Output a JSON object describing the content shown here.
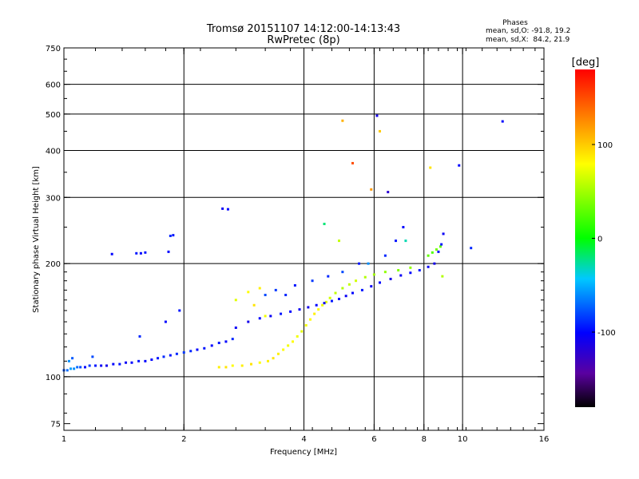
{
  "chart_data": {
    "type": "scatter",
    "title": "Tromsø 20151107 14:12:00-14:13:43",
    "subtitle": "RwPretec (8p)",
    "xlabel": "Frequency [MHz]",
    "ylabel": "Stationary phase Virtual Height [km]",
    "x_scale": "log2",
    "y_scale": "log",
    "xlim": [
      1,
      16
    ],
    "ylim": [
      72,
      750
    ],
    "x_ticks": [
      "1",
      "2",
      "4",
      "6",
      "8",
      "10",
      "16"
    ],
    "y_ticks": [
      "75",
      "100",
      "200",
      "300",
      "400",
      "500",
      "600",
      "750"
    ],
    "grid_x_values": [
      2,
      4,
      6,
      8,
      10
    ],
    "grid_y_values": [
      100,
      200,
      300,
      400,
      500,
      600
    ],
    "stats": {
      "header": "Phases",
      "line1": "mean, sd,O: -91.8, 19.2",
      "line2": "mean, sd,X:  84.2, 21.9"
    },
    "colorbar": {
      "label": "[deg]",
      "ticks": [
        "100",
        "0",
        "-100"
      ],
      "tick_values": [
        100,
        0,
        -100
      ],
      "range": [
        -180,
        180
      ]
    },
    "series": [
      {
        "values": [
          [
            1.0,
            104,
            -78
          ],
          [
            1.02,
            104,
            -70
          ],
          [
            1.04,
            105,
            -55
          ],
          [
            1.06,
            105,
            -60
          ],
          [
            1.08,
            106,
            -70
          ],
          [
            1.1,
            106,
            -80
          ],
          [
            1.13,
            106,
            -100
          ],
          [
            1.16,
            107,
            -85
          ],
          [
            1.2,
            107,
            -95
          ],
          [
            1.24,
            107,
            -105
          ],
          [
            1.28,
            107,
            -110
          ],
          [
            1.33,
            108,
            -100
          ],
          [
            1.38,
            108,
            -95
          ],
          [
            1.43,
            109,
            -105
          ],
          [
            1.48,
            109,
            -100
          ],
          [
            1.54,
            110,
            -95
          ],
          [
            1.6,
            110,
            -100
          ],
          [
            1.66,
            111,
            -100
          ],
          [
            1.72,
            112,
            -95
          ],
          [
            1.78,
            113,
            -90
          ],
          [
            1.85,
            114,
            -95
          ],
          [
            1.92,
            115,
            -90
          ],
          [
            2.0,
            116,
            -85
          ],
          [
            2.08,
            117,
            -90
          ],
          [
            2.16,
            118,
            -100
          ],
          [
            2.25,
            119,
            -95
          ],
          [
            2.35,
            121,
            -100
          ],
          [
            2.45,
            123,
            -95
          ],
          [
            2.55,
            124,
            -100
          ],
          [
            2.65,
            126,
            -90
          ],
          [
            1.05,
            112,
            -75
          ],
          [
            1.03,
            110,
            -60
          ],
          [
            1.18,
            113,
            -80
          ],
          [
            1.55,
            128,
            -90
          ],
          [
            1.8,
            140,
            -100
          ],
          [
            1.95,
            150,
            -95
          ],
          [
            1.32,
            212,
            -100
          ],
          [
            1.52,
            213,
            -95
          ],
          [
            1.56,
            213,
            -100
          ],
          [
            1.6,
            214,
            -95
          ],
          [
            1.85,
            237,
            -90
          ],
          [
            1.88,
            238,
            -95
          ],
          [
            1.83,
            215,
            -100
          ],
          [
            2.5,
            280,
            -105
          ],
          [
            2.58,
            279,
            -100
          ]
        ]
      },
      {
        "values": [
          [
            2.45,
            106,
            85
          ],
          [
            2.55,
            106,
            90
          ],
          [
            2.65,
            107,
            80
          ],
          [
            2.8,
            107,
            85
          ],
          [
            2.95,
            108,
            90
          ],
          [
            3.1,
            109,
            80
          ],
          [
            3.25,
            110,
            85
          ],
          [
            3.35,
            112,
            90
          ],
          [
            3.45,
            115,
            85
          ],
          [
            3.55,
            118,
            80
          ],
          [
            3.65,
            121,
            75
          ],
          [
            3.75,
            124,
            80
          ],
          [
            3.85,
            128,
            75
          ],
          [
            3.95,
            132,
            70
          ],
          [
            4.05,
            137,
            75
          ],
          [
            4.15,
            142,
            80
          ],
          [
            4.25,
            147,
            85
          ],
          [
            4.35,
            151,
            80
          ],
          [
            4.45,
            155,
            75
          ],
          [
            4.55,
            158,
            70
          ],
          [
            4.65,
            162,
            65
          ],
          [
            4.8,
            167,
            60
          ],
          [
            5.0,
            172,
            55
          ],
          [
            5.2,
            176,
            60
          ],
          [
            5.4,
            180,
            65
          ],
          [
            5.7,
            184,
            55
          ],
          [
            6.0,
            187,
            50
          ],
          [
            6.4,
            190,
            45
          ],
          [
            6.9,
            192,
            40
          ],
          [
            7.4,
            195,
            45
          ],
          [
            2.7,
            160,
            70
          ],
          [
            2.9,
            168,
            80
          ],
          [
            3.1,
            172,
            85
          ],
          [
            3.2,
            145,
            75
          ],
          [
            3.0,
            155,
            90
          ],
          [
            8.2,
            210,
            30
          ],
          [
            8.4,
            214,
            25
          ],
          [
            8.6,
            218,
            35
          ],
          [
            8.8,
            222,
            30
          ],
          [
            8.9,
            185,
            55
          ],
          [
            4.9,
            230,
            60
          ],
          [
            5.0,
            480,
            110
          ],
          [
            5.3,
            370,
            150
          ],
          [
            5.9,
            315,
            120
          ],
          [
            6.2,
            450,
            100
          ],
          [
            8.3,
            360,
            90
          ]
        ]
      },
      {
        "values": [
          [
            2.7,
            135,
            -105
          ],
          [
            2.9,
            140,
            -110
          ],
          [
            3.1,
            143,
            -100
          ],
          [
            3.3,
            145,
            -105
          ],
          [
            3.5,
            147,
            -95
          ],
          [
            3.7,
            149,
            -100
          ],
          [
            3.9,
            151,
            -105
          ],
          [
            4.1,
            153,
            -110
          ],
          [
            4.3,
            155,
            -100
          ],
          [
            4.5,
            157,
            -105
          ],
          [
            4.7,
            159,
            -95
          ],
          [
            4.9,
            161,
            -100
          ],
          [
            5.1,
            164,
            -105
          ],
          [
            5.3,
            167,
            -100
          ],
          [
            5.6,
            170,
            -95
          ],
          [
            5.9,
            174,
            -105
          ],
          [
            6.2,
            178,
            -100
          ],
          [
            6.6,
            182,
            -110
          ],
          [
            7.0,
            186,
            -105
          ],
          [
            7.4,
            189,
            -100
          ],
          [
            7.8,
            192,
            -95
          ],
          [
            8.2,
            196,
            -105
          ],
          [
            8.5,
            200,
            -110
          ],
          [
            8.7,
            215,
            -100
          ],
          [
            8.85,
            225,
            -95
          ],
          [
            8.95,
            240,
            -105
          ],
          [
            3.2,
            165,
            -80
          ],
          [
            3.4,
            170,
            -85
          ],
          [
            3.6,
            165,
            -90
          ],
          [
            3.8,
            175,
            -95
          ],
          [
            4.2,
            180,
            -85
          ],
          [
            4.6,
            185,
            -90
          ],
          [
            5.0,
            190,
            -80
          ],
          [
            5.5,
            200,
            -95
          ],
          [
            6.4,
            210,
            -90
          ],
          [
            6.8,
            230,
            -95
          ],
          [
            7.1,
            250,
            -100
          ],
          [
            6.5,
            310,
            -120
          ],
          [
            6.1,
            495,
            -110
          ],
          [
            9.8,
            365,
            -100
          ],
          [
            10.5,
            220,
            -90
          ],
          [
            12.6,
            478,
            -100
          ],
          [
            5.8,
            200,
            -60
          ],
          [
            4.5,
            255,
            -20
          ],
          [
            7.2,
            230,
            -30
          ]
        ]
      }
    ]
  }
}
